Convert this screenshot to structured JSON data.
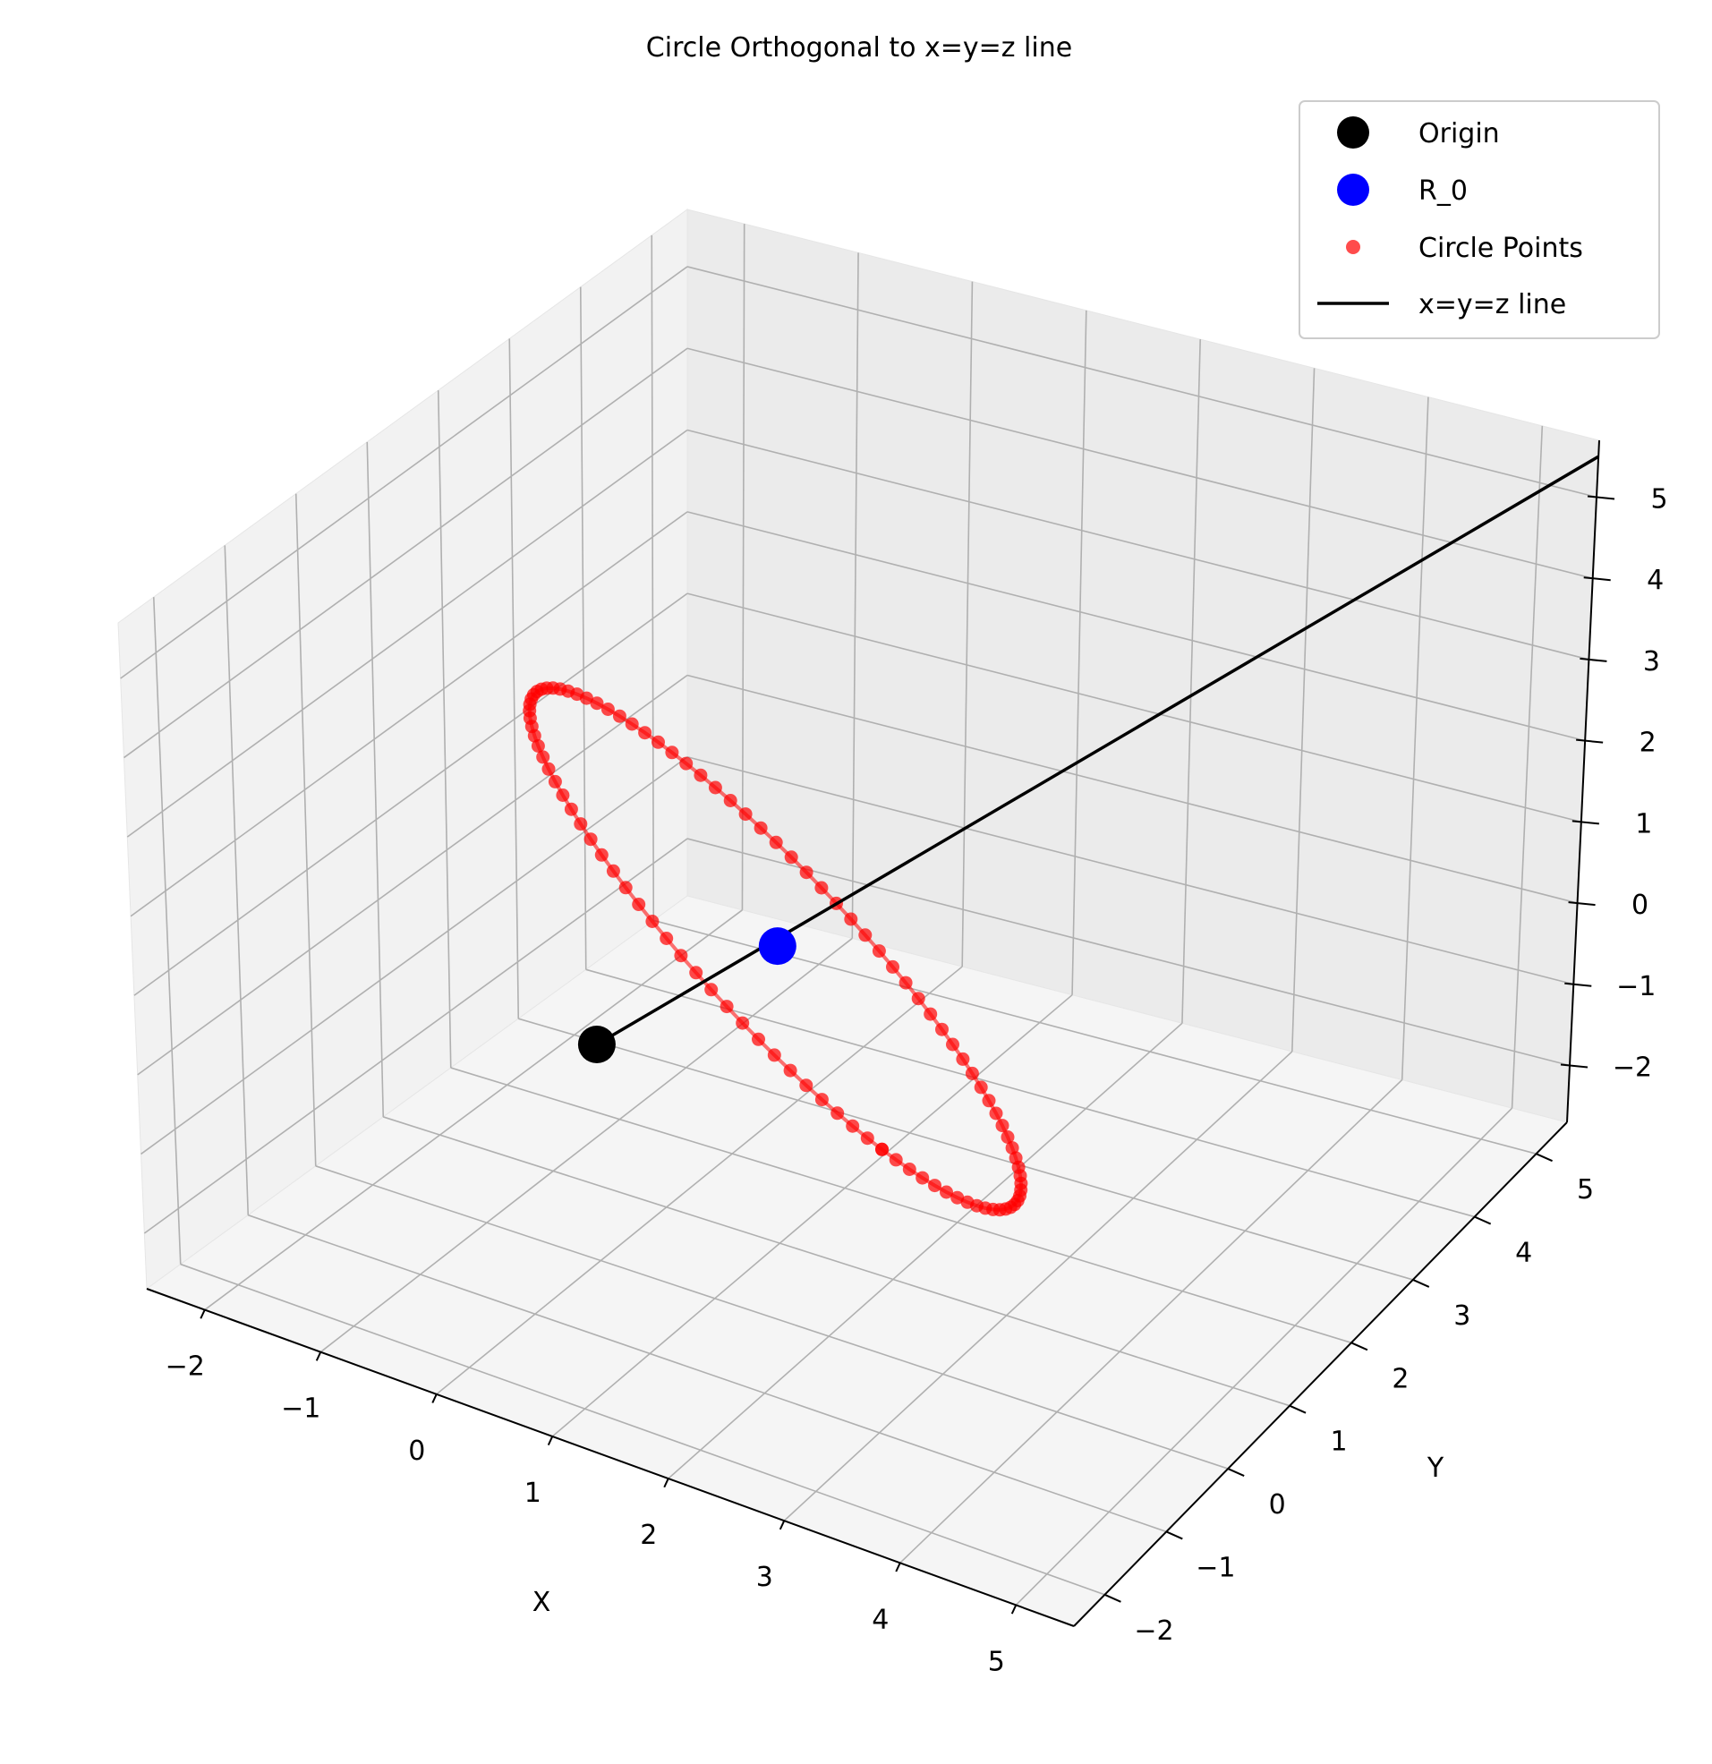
{
  "chart_data": {
    "type": "scatter",
    "title": "Circle Orthogonal to x=y=z line",
    "xlabel": "X",
    "ylabel": "Y",
    "zlabel": "",
    "xlim": [
      -2.5,
      5.5
    ],
    "ylim": [
      -2.5,
      5.5
    ],
    "zlim": [
      -2.7,
      5.7
    ],
    "x_ticks": [
      -2,
      -1,
      0,
      1,
      2,
      3,
      4,
      5
    ],
    "y_ticks": [
      -2,
      -1,
      0,
      1,
      2,
      3,
      4,
      5
    ],
    "z_ticks": [
      -2,
      -1,
      0,
      1,
      2,
      3,
      4,
      5
    ],
    "x_tick_labels": [
      "−2",
      "−1",
      "0",
      "1",
      "2",
      "3",
      "4",
      "5"
    ],
    "y_tick_labels": [
      "−2",
      "−1",
      "0",
      "1",
      "2",
      "3",
      "4",
      "5"
    ],
    "z_tick_labels": [
      "−2",
      "−1",
      "0",
      "1",
      "2",
      "3",
      "4",
      "5"
    ],
    "grid": true,
    "legend_position": "top-right",
    "series": [
      {
        "name": "Origin",
        "kind": "point",
        "color": "#000000",
        "points": [
          [
            0,
            0,
            0
          ]
        ]
      },
      {
        "name": "R_0",
        "kind": "point",
        "color": "#0000ff",
        "points": [
          [
            1,
            1,
            1
          ]
        ]
      },
      {
        "name": "Circle Points",
        "kind": "circle",
        "color": "#ff0000",
        "center": [
          1,
          1,
          1
        ],
        "radius": 3,
        "normal": [
          1,
          1,
          1
        ],
        "n_points": 100
      },
      {
        "name": "x=y=z line",
        "kind": "line",
        "color": "#000000",
        "from": [
          0,
          0,
          0
        ],
        "to": [
          5.5,
          5.5,
          5.5
        ]
      }
    ]
  }
}
